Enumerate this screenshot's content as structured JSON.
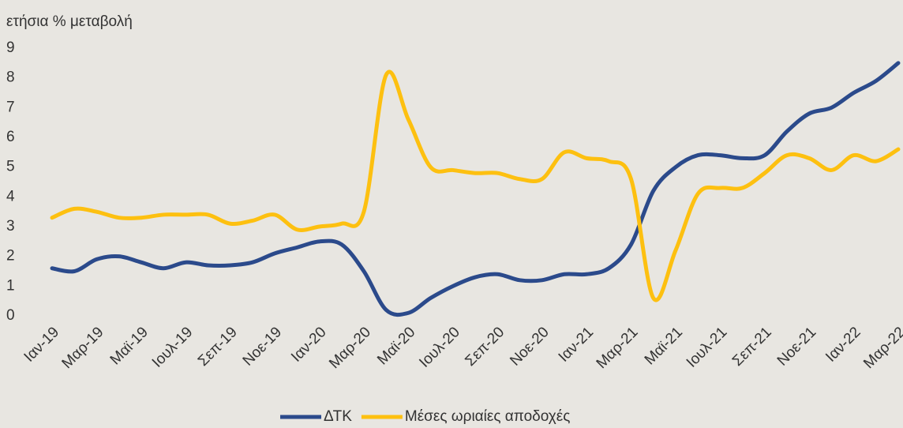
{
  "chart_data": {
    "type": "line",
    "y_label": "ετήσια % μεταβολή",
    "categories": [
      "Ιαν-19",
      null,
      "Μαρ-19",
      null,
      "Μαϊ-19",
      null,
      "Ιουλ-19",
      null,
      "Σεπ-19",
      null,
      "Νοε-19",
      null,
      "Ιαν-20",
      null,
      "Μαρ-20",
      null,
      "Μαϊ-20",
      null,
      "Ιουλ-20",
      null,
      "Σεπ-20",
      null,
      "Νοε-20",
      null,
      "Ιαν-21",
      null,
      "Μαρ-21",
      null,
      "Μαϊ-21",
      null,
      "Ιουλ-21",
      null,
      "Σεπ-21",
      null,
      "Νοε-21",
      null,
      "Ιαν-22",
      null,
      "Μαρ-22"
    ],
    "series": [
      {
        "name": "ΔΤΚ",
        "color": "#2b4a8b",
        "values": [
          1.6,
          1.5,
          1.9,
          2.0,
          1.8,
          1.6,
          1.8,
          1.7,
          1.7,
          1.8,
          2.1,
          2.3,
          2.5,
          2.4,
          1.5,
          0.2,
          0.1,
          0.6,
          1.0,
          1.3,
          1.4,
          1.2,
          1.2,
          1.4,
          1.4,
          1.6,
          2.4,
          4.2,
          5.0,
          5.4,
          5.4,
          5.3,
          5.4,
          6.2,
          6.8,
          7.0,
          7.5,
          7.9,
          8.5
        ]
      },
      {
        "name": "Μέσες ωριαίες αποδοχές",
        "color": "#fdc010",
        "values": [
          3.3,
          3.6,
          3.5,
          3.3,
          3.3,
          3.4,
          3.4,
          3.4,
          3.1,
          3.2,
          3.4,
          2.9,
          3.0,
          3.1,
          3.5,
          8.1,
          6.6,
          5.0,
          4.9,
          4.8,
          4.8,
          4.6,
          4.6,
          5.5,
          5.3,
          5.2,
          4.6,
          0.6,
          2.2,
          4.1,
          4.3,
          4.3,
          4.8,
          5.4,
          5.3,
          4.9,
          5.4,
          5.2,
          5.6
        ]
      }
    ],
    "ylim": [
      0,
      9
    ],
    "yticks": [
      0,
      1,
      2,
      3,
      4,
      5,
      6,
      7,
      8,
      9
    ],
    "grid": false,
    "legend": "bottom"
  }
}
